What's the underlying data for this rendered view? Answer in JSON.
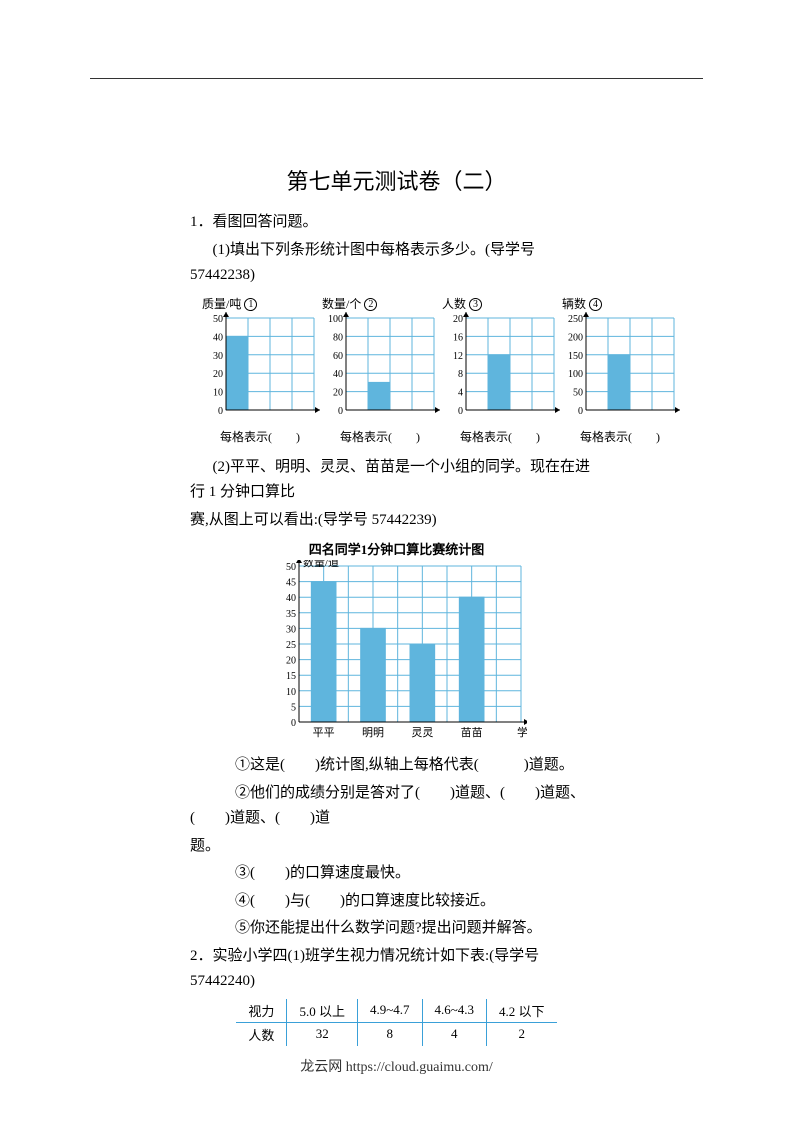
{
  "title": "第七单元测试卷（二）",
  "q1": "1．看图回答问题。",
  "q1_1": "(1)填出下列条形统计图中每格表示多少。(导学号 57442238)",
  "charts": [
    {
      "num": "①",
      "y_label": "质量/吨",
      "ticks": [
        "0",
        "10",
        "20",
        "30",
        "40",
        "50"
      ],
      "caption": "每格表示(　　)",
      "bars": [
        {
          "x": 0,
          "h": 4.0
        }
      ],
      "cols": 4,
      "rows": 5,
      "bar_color": "#5fb5dd",
      "grid_color": "#5fb5dd"
    },
    {
      "num": "②",
      "y_label": "数量/个",
      "ticks": [
        "0",
        "20",
        "40",
        "60",
        "80",
        "100"
      ],
      "caption": "每格表示(　　)",
      "bars": [
        {
          "x": 1,
          "h": 1.5
        }
      ],
      "cols": 4,
      "rows": 5,
      "bar_color": "#5fb5dd",
      "grid_color": "#5fb5dd"
    },
    {
      "num": "③",
      "y_label": "人数",
      "ticks": [
        "0",
        "4",
        "8",
        "12",
        "16",
        "20"
      ],
      "caption": "每格表示(　　)",
      "bars": [
        {
          "x": 1,
          "h": 3.0
        }
      ],
      "cols": 4,
      "rows": 5,
      "bar_color": "#5fb5dd",
      "grid_color": "#5fb5dd"
    },
    {
      "num": "④",
      "y_label": "辆数",
      "ticks": [
        "0",
        "50",
        "100",
        "150",
        "200",
        "250"
      ],
      "caption": "每格表示(　　)",
      "bars": [
        {
          "x": 1,
          "h": 3.0
        }
      ],
      "cols": 4,
      "rows": 5,
      "bar_color": "#5fb5dd",
      "grid_color": "#5fb5dd"
    }
  ],
  "q1_2a": "(2)平平、明明、灵灵、苗苗是一个小组的同学。现在在进行 1 分钟口算比",
  "q1_2b": "赛,从图上可以看出:(导学号 57442239)",
  "bigchart": {
    "title": "四名同学1分钟口算比赛统计图",
    "y_label": "数量/道",
    "x_label_last": "学生",
    "ticks": [
      "0",
      "5",
      "10",
      "15",
      "20",
      "25",
      "30",
      "35",
      "40",
      "45",
      "50"
    ],
    "categories": [
      "平平",
      "明明",
      "灵灵",
      "苗苗"
    ],
    "values": [
      45,
      30,
      25,
      40
    ],
    "cols": 9,
    "rows": 10,
    "bar_color": "#5fb5dd",
    "grid_color": "#5fb5dd",
    "font_size": 12
  },
  "q1_2_items": {
    "i1": "①这是(　　)统计图,纵轴上每格代表(　　　)道题。",
    "i2a": "②他们的成绩分别是答对了(　　)道题、(　　)道题、(　　)道题、(　　)道",
    "i2b": "题。",
    "i3": "③(　　)的口算速度最快。",
    "i4": "④(　　)与(　　)的口算速度比较接近。",
    "i5": "⑤你还能提出什么数学问题?提出问题并解答。"
  },
  "q2": "2．实验小学四(1)班学生视力情况统计如下表:(导学号 57442240)",
  "table": {
    "header": [
      "视力",
      "5.0 以上",
      "4.9~4.7",
      "4.6~4.3",
      "4.2 以下"
    ],
    "row": [
      "人数",
      "32",
      "8",
      "4",
      "2"
    ]
  },
  "footer": "龙云网 https://cloud.guaimu.com/"
}
